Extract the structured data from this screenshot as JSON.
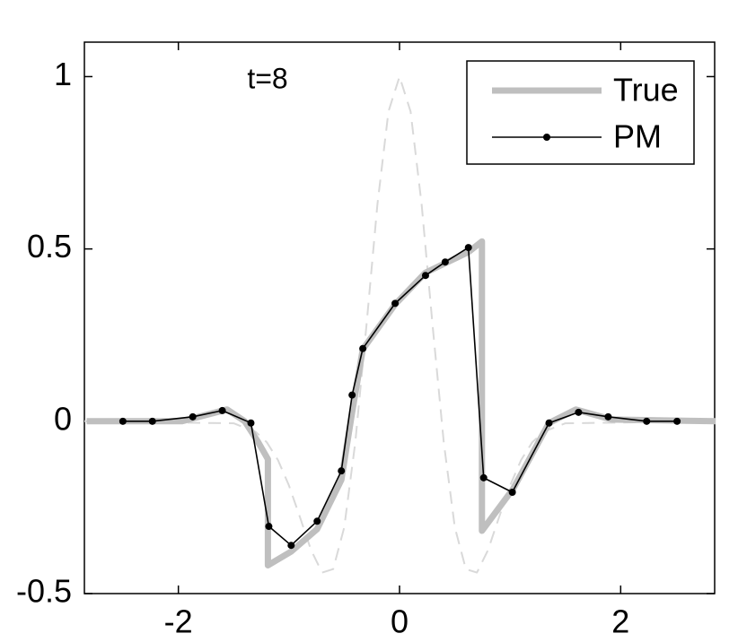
{
  "chart_data": {
    "type": "line",
    "annotation": "t=8",
    "xlim": [
      -2.85,
      2.85
    ],
    "ylim": [
      -0.5,
      1.1
    ],
    "xticks": [
      -2,
      0,
      2
    ],
    "yticks": [
      -0.5,
      0,
      0.5,
      1
    ],
    "grid": false,
    "legend": "upper right",
    "series": [
      {
        "color": "#d9d9d9",
        "style": "dashed",
        "linewidth": 2,
        "x": [
          -2.85,
          -1.5,
          -1.3,
          -1.2,
          -1.1,
          -1.0,
          -0.9,
          -0.8,
          -0.7,
          -0.6,
          -0.5,
          -0.4,
          -0.3,
          -0.2,
          -0.1,
          0,
          0.1,
          0.2,
          0.3,
          0.4,
          0.5,
          0.6,
          0.7,
          0.8,
          0.9,
          1.0,
          1.1,
          1.2,
          1.3,
          1.5,
          2.85
        ],
        "values": [
          0,
          -0.006,
          -0.031,
          -0.061,
          -0.112,
          -0.186,
          -0.279,
          -0.374,
          -0.439,
          -0.429,
          -0.308,
          -0.062,
          0.276,
          0.63,
          0.899,
          1,
          0.899,
          0.63,
          0.276,
          -0.062,
          -0.308,
          -0.429,
          -0.439,
          -0.374,
          -0.279,
          -0.186,
          -0.112,
          -0.061,
          -0.031,
          -0.006,
          0
        ]
      },
      {
        "name": "True",
        "color": "#bfbfbf",
        "style": "solid",
        "linewidth": 7,
        "x": [
          -2.83,
          -1.97,
          -1.56,
          -1.4,
          -1.28,
          -1.19,
          -1.19,
          -0.98,
          -0.745,
          -0.526,
          -0.429,
          -0.332,
          -0.04,
          0.235,
          0.623,
          0.745,
          0.745,
          1.028,
          1.352,
          1.595,
          1.919,
          2.86
        ],
        "values": [
          0,
          0,
          0.034,
          0,
          -0.06,
          -0.11,
          -0.418,
          -0.378,
          -0.313,
          -0.17,
          0.026,
          0.209,
          0.339,
          0.431,
          0.491,
          0.522,
          -0.318,
          -0.196,
          -0.005,
          0.034,
          0.005,
          0
        ]
      },
      {
        "name": "PM",
        "color": "#000000",
        "style": "solid",
        "linewidth": 1.6,
        "marker": true,
        "x": [
          -2.502,
          -2.235,
          -1.87,
          -1.603,
          -1.344,
          -1.182,
          -0.98,
          -0.745,
          -0.526,
          -0.429,
          -0.332,
          -0.04,
          0.235,
          0.413,
          0.623,
          0.761,
          1.02,
          1.352,
          1.619,
          1.887,
          2.235,
          2.51
        ],
        "values": [
          0,
          0,
          0.013,
          0.031,
          -0.005,
          -0.305,
          -0.36,
          -0.29,
          -0.144,
          0.076,
          0.211,
          0.342,
          0.423,
          0.462,
          0.504,
          -0.164,
          -0.206,
          -0.005,
          0.026,
          0.013,
          0,
          0
        ]
      }
    ]
  }
}
